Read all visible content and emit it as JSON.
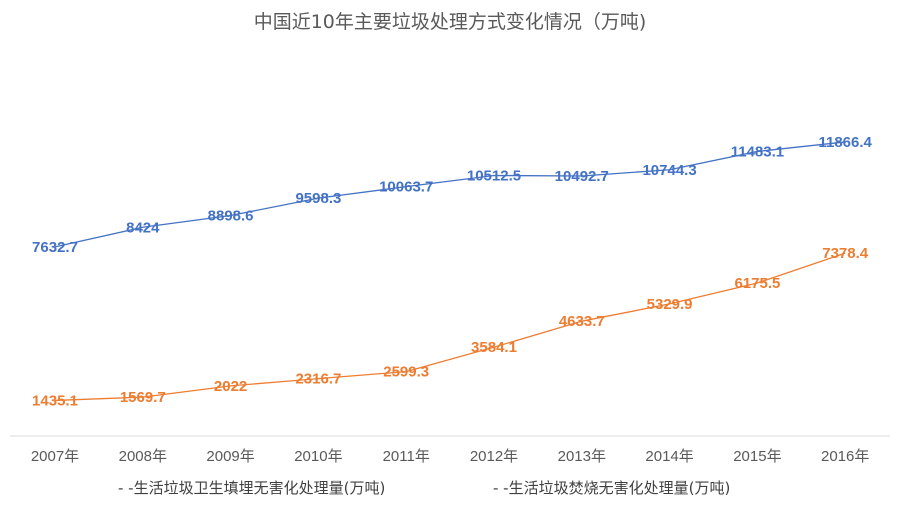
{
  "chart_data": {
    "type": "line",
    "title": "中国近10年主要垃圾处理方式变化情况（万吨)",
    "categories": [
      "2007年",
      "2008年",
      "2009年",
      "2010年",
      "2011年",
      "2012年",
      "2013年",
      "2014年",
      "2015年",
      "2016年"
    ],
    "series": [
      {
        "name": "- -生活垃圾卫生填埋无害化处理量(万吨)",
        "color": "#4472c4",
        "values": [
          7632.7,
          8424,
          8898.6,
          9598.3,
          10063.7,
          10512.5,
          10492.7,
          10744.3,
          11483.1,
          11866.4
        ],
        "labels": [
          "7632.7",
          "8424",
          "8898.6",
          "9598.3",
          "10063.7",
          "10512.5",
          "10492.7",
          "10744.3",
          "11483.1",
          "11866.4"
        ]
      },
      {
        "name": "- -生活垃圾焚烧无害化处理量(万吨)",
        "color": "#ed7d31",
        "values": [
          1435.1,
          1569.7,
          2022,
          2316.7,
          2599.3,
          3584.1,
          4633.7,
          5329.9,
          6175.5,
          7378.4
        ],
        "labels": [
          "1435.1",
          "1569.7",
          "2022",
          "2316.7",
          "2599.3",
          "3584.1",
          "4633.7",
          "5329.9",
          "6175.5",
          "7378.4"
        ]
      }
    ],
    "ylim": [
      0,
      14000
    ],
    "grid": false,
    "legend_position": "bottom"
  }
}
